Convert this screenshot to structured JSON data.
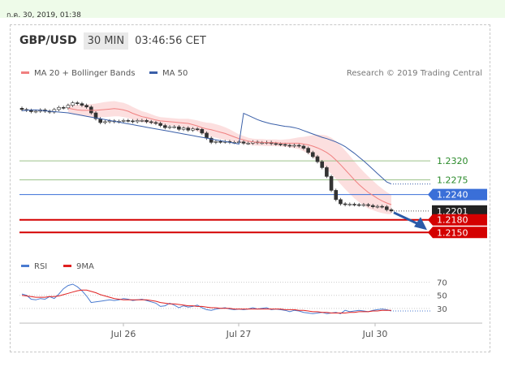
{
  "header": {
    "datetime": "ก.ค. 30, 2019, 01:38",
    "pair": "GBP/USD",
    "timeframe": "30 MIN",
    "clock": "03:46:56 CET"
  },
  "colors": {
    "ma20": "#f08080",
    "ma50": "#3a5fa8",
    "band_fill": "#fbd4d4",
    "rsi": "#4a7bd0",
    "rsi_ma": "#e02020"
  },
  "chart_data": [
    {
      "type": "candlestick",
      "title": "",
      "legend": [
        {
          "name": "MA 20 + Bollinger Bands",
          "color": "#f08080"
        },
        {
          "name": "MA 50",
          "color": "#3a5fa8"
        }
      ],
      "legend_position": "top-left",
      "credit": "Research © 2019 Trading Central",
      "x_ticks": [
        "Jul 26",
        "Jul 27",
        "Jul 30"
      ],
      "ylim": [
        1.211,
        1.249
      ],
      "levels": [
        {
          "value": 1.232,
          "label": "1.2320",
          "color": "#9cc28a",
          "label_color": "#2a8a2a",
          "style": "thin-line"
        },
        {
          "value": 1.2275,
          "label": "1.2275",
          "color": "#9cc28a",
          "label_color": "#2a8a2a",
          "style": "thin-line"
        },
        {
          "value": 1.224,
          "label": "1.2240",
          "color": "#3a6fd8",
          "label_color": "#ffffff",
          "style": "tag"
        },
        {
          "value": 1.2201,
          "label": "1.2201",
          "color": "#222222",
          "label_color": "#ffffff",
          "style": "current"
        },
        {
          "value": 1.218,
          "label": "1.2180",
          "color": "#d40000",
          "label_color": "#ffffff",
          "style": "tag"
        },
        {
          "value": 1.215,
          "label": "1.2150",
          "color": "#d40000",
          "label_color": "#ffffff",
          "style": "tag"
        }
      ],
      "close": [
        1.2442,
        1.244,
        1.2437,
        1.2438,
        1.2441,
        1.2438,
        1.2436,
        1.2442,
        1.2447,
        1.2446,
        1.2452,
        1.2458,
        1.2456,
        1.2452,
        1.2448,
        1.2434,
        1.242,
        1.2411,
        1.2413,
        1.2415,
        1.2413,
        1.2414,
        1.2416,
        1.2415,
        1.2413,
        1.2416,
        1.2416,
        1.2413,
        1.2411,
        1.2409,
        1.2404,
        1.2399,
        1.2401,
        1.2401,
        1.2395,
        1.2398,
        1.2393,
        1.2396,
        1.2395,
        1.2386,
        1.2374,
        1.2364,
        1.2366,
        1.2365,
        1.2366,
        1.2364,
        1.2364,
        1.2365,
        1.2362,
        1.2362,
        1.2365,
        1.2363,
        1.2363,
        1.2364,
        1.2361,
        1.236,
        1.2359,
        1.2357,
        1.2355,
        1.2357,
        1.2355,
        1.235,
        1.234,
        1.233,
        1.2318,
        1.2304,
        1.2283,
        1.225,
        1.2228,
        1.2218,
        1.2216,
        1.2217,
        1.2216,
        1.2215,
        1.2216,
        1.2214,
        1.2211,
        1.2212,
        1.2211,
        1.2204,
        1.2201
      ],
      "ma20": [
        1.2445,
        1.2443,
        1.2441,
        1.244,
        1.244,
        1.244,
        1.244,
        1.2441,
        1.2442,
        1.2443,
        1.2444,
        1.2443,
        1.2441,
        1.2438,
        1.2433,
        1.2429,
        1.2425,
        1.2423,
        1.242,
        1.2417,
        1.2415,
        1.2414,
        1.2413,
        1.2412,
        1.2411,
        1.241,
        1.2409,
        1.2406,
        1.2403,
        1.2399,
        1.2396,
        1.2394,
        1.2391,
        1.2388,
        1.2385,
        1.2381,
        1.2377,
        1.2373,
        1.237,
        1.2367,
        1.2365,
        1.2364,
        1.2364,
        1.2363,
        1.2363,
        1.2363,
        1.2362,
        1.2362,
        1.2362,
        1.2362,
        1.2362,
        1.236,
        1.2358,
        1.2355,
        1.2351,
        1.2346,
        1.234,
        1.2332,
        1.2322,
        1.2311,
        1.2299,
        1.2287,
        1.2275,
        1.2264,
        1.2254,
        1.2245,
        1.2238,
        1.2231,
        1.2225,
        1.222,
        1.2216
      ],
      "ma20_start": 10,
      "band_half": [
        0.0009,
        0.001,
        0.0012,
        0.0013,
        0.0014,
        0.0015,
        0.0016,
        0.0017,
        0.0018,
        0.0018,
        0.0018,
        0.0017,
        0.0017,
        0.0016,
        0.0015,
        0.0014,
        0.0013,
        0.0012,
        0.0011,
        0.001,
        0.0009,
        0.0009,
        0.0009,
        0.0009,
        0.0009,
        0.001,
        0.0011,
        0.0012,
        0.0013,
        0.0014,
        0.0015,
        0.0016,
        0.0016,
        0.0016,
        0.0015,
        0.0014,
        0.0012,
        0.001,
        0.0009,
        0.0008,
        0.0008,
        0.0008,
        0.0008,
        0.0008,
        0.0008,
        0.0008,
        0.0008,
        0.0009,
        0.001,
        0.0012,
        0.0014,
        0.0017,
        0.0021,
        0.0026,
        0.0031,
        0.0036,
        0.004,
        0.0043,
        0.0045,
        0.0046,
        0.0046,
        0.0045,
        0.0044,
        0.0042,
        0.004,
        0.0038,
        0.0035,
        0.0032,
        0.0029,
        0.0026,
        0.0023
      ],
      "ma50": [
        1.2433,
        1.2428,
        1.2423,
        1.2418,
        1.2414,
        1.2411,
        1.2408,
        1.2406,
        1.2404,
        1.2402,
        1.2401,
        1.2399,
        1.2396,
        1.2392,
        1.2388,
        1.2384,
        1.238,
        1.2376,
        1.2373,
        1.2369,
        1.2365,
        1.236,
        1.2354,
        1.2346,
        1.2338,
        1.2329,
        1.232,
        1.231,
        1.23,
        1.229,
        1.228,
        1.227,
        1.2265
      ],
      "ma50_start": 48,
      "projection": {
        "from": 1.2201,
        "to": 1.215
      }
    },
    {
      "type": "line",
      "title": "",
      "legend": [
        {
          "name": "RSI",
          "color": "#4a7bd0"
        },
        {
          "name": "9MA",
          "color": "#e02020"
        }
      ],
      "legend_position": "top-left",
      "ylim": [
        0,
        100
      ],
      "y_ticks": [
        "70",
        "50",
        "30"
      ],
      "series": [
        {
          "name": "RSI",
          "values": [
            52,
            50,
            44,
            43,
            45,
            44,
            48,
            45,
            52,
            60,
            65,
            67,
            63,
            57,
            49,
            39,
            40,
            41,
            42,
            43,
            42,
            43,
            45,
            44,
            42,
            43,
            44,
            42,
            40,
            38,
            33,
            34,
            38,
            35,
            31,
            34,
            32,
            33,
            35,
            31,
            28,
            27,
            29,
            30,
            31,
            29,
            28,
            29,
            28,
            29,
            31,
            29,
            30,
            31,
            28,
            29,
            28,
            27,
            25,
            27,
            26,
            24,
            23,
            22,
            23,
            24,
            22,
            23,
            24,
            22,
            27,
            25,
            26,
            27,
            26,
            25,
            27,
            28,
            29,
            28,
            26
          ]
        },
        {
          "name": "9MA",
          "values": [
            50,
            49,
            48,
            47,
            47,
            47,
            48,
            48,
            49,
            51,
            53,
            55,
            57,
            58,
            58,
            56,
            54,
            51,
            49,
            47,
            45,
            44,
            43,
            43,
            43,
            43,
            43,
            43,
            42,
            41,
            39,
            38,
            37,
            37,
            36,
            35,
            34,
            34,
            33,
            33,
            32,
            31,
            31,
            30,
            30,
            30,
            29,
            29,
            29,
            29,
            29,
            29,
            29,
            29,
            29,
            29,
            29,
            28,
            28,
            28,
            27,
            27,
            26,
            25,
            25,
            24,
            24,
            23,
            23,
            23,
            23,
            24,
            24,
            25,
            25,
            25,
            26,
            26,
            27,
            27,
            27
          ]
        }
      ]
    }
  ]
}
